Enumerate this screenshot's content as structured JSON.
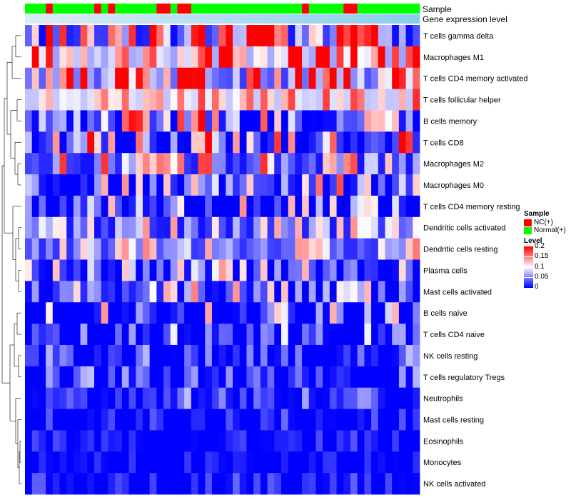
{
  "chart_data": {
    "type": "heatmap",
    "title": "",
    "annotation_tracks": [
      "Sample",
      "Gene expression level"
    ],
    "sample_groups": [
      "N",
      "N",
      "N",
      "T",
      "N",
      "N",
      "N",
      "N",
      "N",
      "N",
      "T",
      "N",
      "T",
      "N",
      "N",
      "N",
      "N",
      "N",
      "N",
      "T",
      "T",
      "N",
      "T",
      "T",
      "N",
      "N",
      "N",
      "N",
      "N",
      "N",
      "N",
      "N",
      "N",
      "N",
      "N",
      "N",
      "N",
      "N",
      "N",
      "N",
      "T",
      "N",
      "N",
      "N",
      "N",
      "N",
      "T",
      "T",
      "N",
      "N",
      "N",
      "N",
      "N",
      "N",
      "N",
      "N",
      "N"
    ],
    "rows": [
      "T cells gamma delta",
      "Macrophages M1",
      "T cells CD4 memory activated",
      "T cells follicular helper",
      "B cells memory",
      "T cells CD8",
      "Macrophages M2",
      "Macrophages M0",
      "T cells CD4 memory resting",
      "Dendritic cells activated",
      "Dendritic cells resting",
      "Plasma cells",
      "Mast cells activated",
      "B cells naive",
      "T cells CD4 naive",
      "NK cells resting",
      "T cells regulatory  Tregs",
      "Neutrophils",
      "Mast cells resting",
      "Eosinophils",
      "Monocytes",
      "NK cells activated"
    ],
    "n_columns": 57,
    "color_scale": {
      "min": 0,
      "mid": 0.1,
      "max": 0.2,
      "low_color": "#0000FF",
      "mid_color": "#FFFFFF",
      "high_color": "#FF0000"
    },
    "row_profiles": [
      {
        "base": 0.1,
        "spread": 0.2
      },
      {
        "base": 0.13,
        "spread": 0.14
      },
      {
        "base": 0.1,
        "spread": 0.16
      },
      {
        "base": 0.11,
        "spread": 0.07
      },
      {
        "base": 0.06,
        "spread": 0.14
      },
      {
        "base": 0.05,
        "spread": 0.15
      },
      {
        "base": 0.06,
        "spread": 0.11
      },
      {
        "base": 0.04,
        "spread": 0.12
      },
      {
        "base": 0.03,
        "spread": 0.13
      },
      {
        "base": 0.05,
        "spread": 0.09
      },
      {
        "base": 0.06,
        "spread": 0.09
      },
      {
        "base": 0.04,
        "spread": 0.09
      },
      {
        "base": 0.04,
        "spread": 0.1
      },
      {
        "base": 0.01,
        "spread": 0.12
      },
      {
        "base": 0.01,
        "spread": 0.08
      },
      {
        "base": 0.01,
        "spread": 0.06
      },
      {
        "base": 0.01,
        "spread": 0.06
      },
      {
        "base": 0.02,
        "spread": 0.05
      },
      {
        "base": 0.0,
        "spread": 0.04
      },
      {
        "base": 0.0,
        "spread": 0.03
      },
      {
        "base": 0.0,
        "spread": 0.02
      },
      {
        "base": 0.0,
        "spread": 0.04
      }
    ],
    "legend": {
      "sample_title": "Sample",
      "sample_entries": [
        {
          "key": "T",
          "label": "NC(+)",
          "color": "#FF0000"
        },
        {
          "key": "N",
          "label": "Normal(+)",
          "color": "#00FF00"
        }
      ],
      "level_title": "Level",
      "level_ticks": [
        "0.2",
        "0.15",
        "0.1",
        "0.05",
        "0"
      ],
      "placement": "right"
    },
    "expression_track_color": "#87CEEB"
  }
}
